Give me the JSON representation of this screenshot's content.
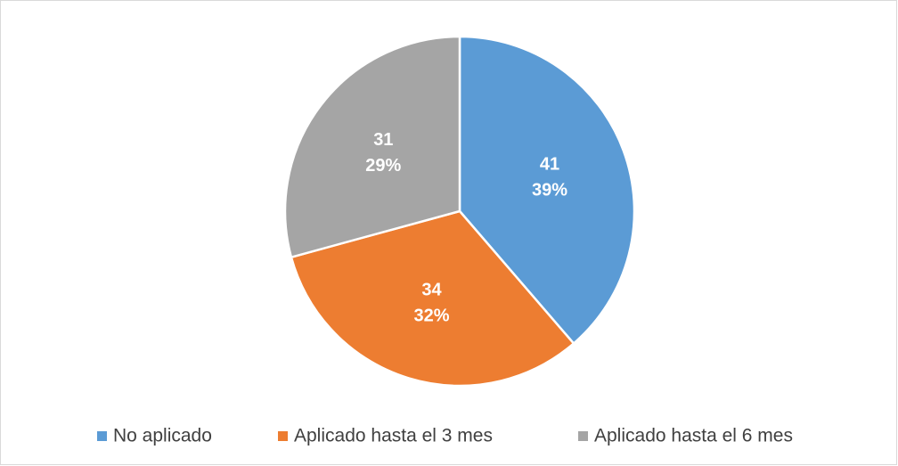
{
  "chart_data": {
    "type": "pie",
    "categories": [
      "No aplicado",
      "Aplicado hasta el 3 mes",
      "Aplicado hasta el 6 mes"
    ],
    "values": [
      41,
      34,
      31
    ],
    "percent_labels": [
      "39%",
      "32%",
      "29%"
    ],
    "colors": [
      "#5b9bd5",
      "#ed7d31",
      "#a5a5a5"
    ],
    "legend": "bottom"
  }
}
